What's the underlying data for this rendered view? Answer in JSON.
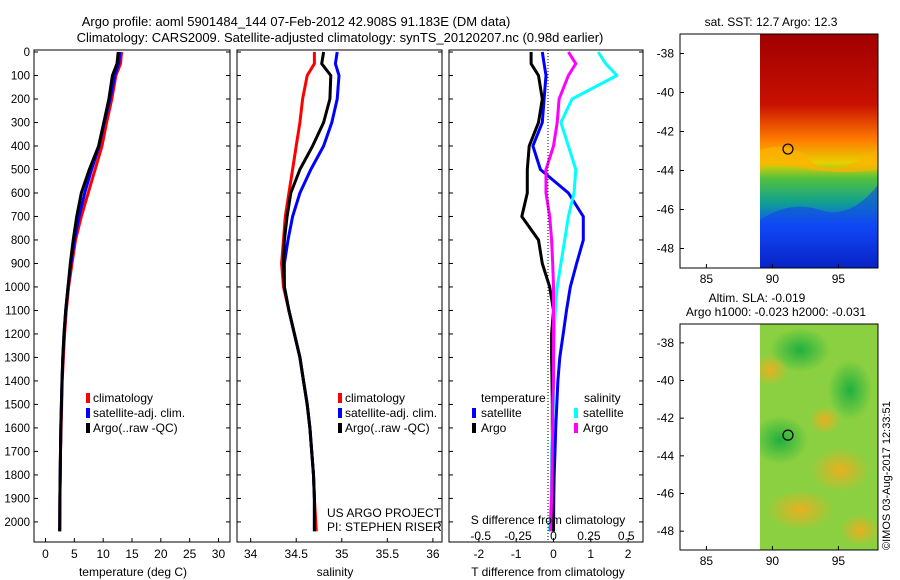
{
  "header": {
    "line1": "Argo profile: aoml 5901484_144 07-Feb-2012 42.908S 91.183E (DM data)",
    "line2": "Climatology: CARS2009. Satellite-adjusted climatology: synTS_20120207.nc (0.98d earlier)"
  },
  "colors": {
    "climatology": "#ff0000",
    "satellite": "#0000ff",
    "argo": "#000000",
    "salinity_sat": "#00ffff",
    "salinity_argo": "#ff00ff"
  },
  "credit": {
    "line1": "US ARGO PROJECT",
    "line2": "PI: STEPHEN RISER"
  },
  "timestamp": "©IMOS 03-Aug-2017 12:33:51",
  "chart_data": [
    {
      "type": "line",
      "id": "temperature",
      "xlabel": "temperature (deg C)",
      "ylabel": "",
      "xlim": [
        -2,
        32
      ],
      "ylim": [
        2060,
        0
      ],
      "invert_y": true,
      "xticks": [
        0,
        5,
        10,
        15,
        20,
        25,
        30
      ],
      "yticks": [
        0,
        100,
        200,
        300,
        400,
        500,
        600,
        700,
        800,
        900,
        1000,
        1100,
        1200,
        1300,
        1400,
        1500,
        1600,
        1700,
        1800,
        1900,
        2000
      ],
      "legend": [
        "climatology",
        "satellite-adj. clim.",
        "Argo(..raw -QC)"
      ],
      "series": [
        {
          "name": "climatology",
          "color": "#ff0000",
          "x": [
            13.2,
            13.0,
            12.2,
            11.5,
            10.6,
            9.8,
            8.6,
            7.4,
            6.2,
            5.2,
            4.6,
            4.0,
            3.6,
            3.3,
            3.1,
            2.9,
            2.8,
            2.7,
            2.6,
            2.55,
            2.5,
            2.45
          ],
          "y": [
            0,
            50,
            100,
            200,
            300,
            400,
            500,
            600,
            700,
            800,
            900,
            1000,
            1100,
            1200,
            1300,
            1400,
            1500,
            1600,
            1700,
            1800,
            1900,
            2040
          ]
        },
        {
          "name": "satellite-adj. clim.",
          "color": "#0000ff",
          "x": [
            12.9,
            12.7,
            12.0,
            11.2,
            10.2,
            9.3,
            8.0,
            6.8,
            5.8,
            5.0,
            4.4,
            3.9,
            3.5,
            3.2,
            3.0,
            2.85,
            2.75,
            2.65,
            2.6,
            2.55,
            2.5,
            2.45
          ],
          "y": [
            0,
            50,
            100,
            200,
            300,
            400,
            500,
            600,
            700,
            800,
            900,
            1000,
            1100,
            1200,
            1300,
            1400,
            1500,
            1600,
            1700,
            1800,
            1900,
            2040
          ]
        },
        {
          "name": "Argo(..raw -QC)",
          "color": "#000000",
          "x": [
            12.6,
            12.4,
            11.6,
            11.0,
            10.1,
            9.2,
            7.6,
            6.2,
            5.4,
            4.8,
            4.3,
            3.9,
            3.5,
            3.2,
            3.0,
            2.85,
            2.75,
            2.65,
            2.6,
            2.55,
            2.5,
            2.45
          ],
          "y": [
            0,
            50,
            100,
            200,
            300,
            400,
            500,
            600,
            700,
            800,
            900,
            1000,
            1100,
            1200,
            1300,
            1400,
            1500,
            1600,
            1700,
            1800,
            1900,
            2040
          ]
        }
      ]
    },
    {
      "type": "line",
      "id": "salinity",
      "xlabel": "salinity",
      "ylabel": "",
      "xlim": [
        33.85,
        36.1
      ],
      "ylim": [
        2060,
        0
      ],
      "invert_y": true,
      "xticks": [
        34,
        34.5,
        35,
        35.5,
        36
      ],
      "legend": [
        "climatology",
        "satellite-adj. clim.",
        "Argo(..raw -QC)"
      ],
      "series": [
        {
          "name": "climatology",
          "color": "#ff0000",
          "x": [
            34.7,
            34.7,
            34.62,
            34.57,
            34.54,
            34.5,
            34.46,
            34.42,
            34.38,
            34.36,
            34.34,
            34.36,
            34.42,
            34.48,
            34.54,
            34.58,
            34.62,
            34.65,
            34.67,
            34.69,
            34.7,
            34.72
          ],
          "y": [
            0,
            50,
            100,
            200,
            300,
            400,
            500,
            600,
            700,
            800,
            900,
            1000,
            1100,
            1200,
            1300,
            1400,
            1500,
            1600,
            1700,
            1800,
            1900,
            2040
          ]
        },
        {
          "name": "satellite-adj. clim.",
          "color": "#0000ff",
          "x": [
            34.95,
            34.93,
            34.97,
            34.95,
            34.89,
            34.8,
            34.66,
            34.54,
            34.46,
            34.41,
            34.37,
            34.37,
            34.42,
            34.48,
            34.54,
            34.58,
            34.62,
            34.65,
            34.67,
            34.69,
            34.7,
            34.7
          ],
          "y": [
            0,
            50,
            100,
            200,
            300,
            400,
            500,
            600,
            700,
            800,
            900,
            1000,
            1100,
            1200,
            1300,
            1400,
            1500,
            1600,
            1700,
            1800,
            1900,
            2040
          ]
        },
        {
          "name": "Argo(..raw -QC)",
          "color": "#000000",
          "x": [
            34.8,
            34.78,
            34.88,
            34.87,
            34.8,
            34.68,
            34.54,
            34.44,
            34.4,
            34.37,
            34.36,
            34.37,
            34.42,
            34.48,
            34.54,
            34.58,
            34.62,
            34.65,
            34.67,
            34.69,
            34.7,
            34.7
          ],
          "y": [
            0,
            50,
            100,
            200,
            300,
            400,
            500,
            600,
            700,
            800,
            900,
            1000,
            1100,
            1200,
            1300,
            1400,
            1500,
            1600,
            1700,
            1800,
            1900,
            2040
          ]
        }
      ]
    },
    {
      "type": "line",
      "id": "difference",
      "xlabel": "T difference from climatology",
      "top_label": "S difference from climatology",
      "xlim": [
        -2.8,
        2.4
      ],
      "ylim": [
        2060,
        0
      ],
      "invert_y": true,
      "xticks": [
        -2,
        -1,
        0,
        1,
        2
      ],
      "top_xticks": [
        "-0.5",
        "-0.25",
        "0",
        "0.25",
        "0.5"
      ],
      "legend": {
        "temperature_title": "temperature",
        "salinity_title": "salinity",
        "items": [
          "satellite",
          "Argo",
          "satellite",
          "Argo"
        ]
      },
      "series": [
        {
          "name": "temperature satellite",
          "color": "#0000ff",
          "x": [
            -0.3,
            -0.25,
            -0.2,
            -0.25,
            -0.3,
            -0.55,
            -0.35,
            0.4,
            0.8,
            0.8,
            0.62,
            0.45,
            0.35,
            0.26,
            0.17,
            0.12,
            0.09,
            0.06,
            0.04,
            0.02,
            0.01,
            0.0
          ],
          "y": [
            0,
            50,
            100,
            200,
            300,
            400,
            500,
            600,
            700,
            800,
            900,
            1000,
            1100,
            1200,
            1300,
            1400,
            1500,
            1600,
            1700,
            1800,
            1900,
            2040
          ]
        },
        {
          "name": "temperature Argo",
          "color": "#000000",
          "x": [
            -0.6,
            -0.6,
            -0.4,
            -0.3,
            -0.4,
            -0.65,
            -0.7,
            -0.7,
            -0.85,
            -0.4,
            -0.3,
            -0.1,
            0.0,
            -0.05,
            -0.05,
            -0.04,
            -0.03,
            -0.03,
            -0.02,
            -0.01,
            -0.01,
            0.0
          ],
          "y": [
            0,
            50,
            100,
            200,
            300,
            400,
            500,
            600,
            700,
            800,
            900,
            1000,
            1100,
            1200,
            1300,
            1400,
            1500,
            1600,
            1700,
            1800,
            1900,
            2040
          ]
        },
        {
          "name": "salinity satellite",
          "color": "#00ffff",
          "x": [
            1.2,
            1.4,
            1.7,
            0.5,
            0.2,
            0.4,
            0.6,
            0.55,
            0.4,
            0.3,
            0.2,
            0.1,
            0.05,
            0.02,
            0.0,
            0.0,
            0.0,
            -0.02,
            -0.05,
            -0.05,
            -0.06,
            -0.1
          ],
          "y": [
            0,
            50,
            100,
            200,
            300,
            400,
            500,
            600,
            700,
            800,
            900,
            1000,
            1100,
            1200,
            1300,
            1400,
            1500,
            1600,
            1700,
            1800,
            1900,
            2040
          ]
        },
        {
          "name": "salinity Argo",
          "color": "#ff00ff",
          "x": [
            0.4,
            0.6,
            0.4,
            0.15,
            0.1,
            0.0,
            -0.2,
            -0.2,
            -0.1,
            -0.05,
            -0.02,
            0.0,
            0.0,
            0.0,
            0.0,
            0.0,
            -0.02,
            -0.02,
            -0.03,
            -0.04,
            -0.05,
            -0.08
          ],
          "y": [
            0,
            50,
            100,
            200,
            300,
            400,
            500,
            600,
            700,
            800,
            900,
            1000,
            1100,
            1200,
            1300,
            1400,
            1500,
            1600,
            1700,
            1800,
            1900,
            2040
          ]
        }
      ]
    },
    {
      "type": "heatmap",
      "id": "sst_map",
      "title": "sat. SST: 12.7  Argo: 12.3",
      "xlim": [
        83,
        98
      ],
      "ylim": [
        -49,
        -37
      ],
      "xticks": [
        85,
        90,
        95
      ],
      "yticks": [
        -38,
        -40,
        -42,
        -44,
        -46,
        -48
      ],
      "marker": {
        "lon": 91.18,
        "lat": -42.9
      }
    },
    {
      "type": "heatmap",
      "id": "sla_map",
      "title": "Altim. SLA: -0.019",
      "subtitle": "Argo h1000: -0.023  h2000: -0.031",
      "xlim": [
        83,
        98
      ],
      "ylim": [
        -49,
        -37
      ],
      "xticks": [
        85,
        90,
        95
      ],
      "yticks": [
        -38,
        -40,
        -42,
        -44,
        -46,
        -48
      ],
      "marker": {
        "lon": 91.18,
        "lat": -42.9
      }
    }
  ]
}
